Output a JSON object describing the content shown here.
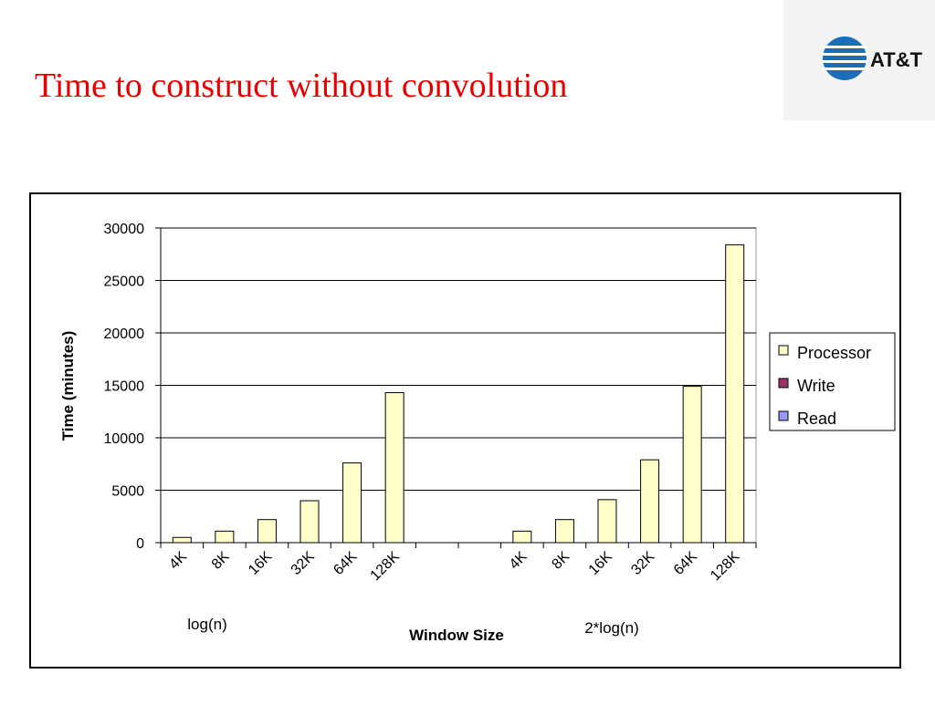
{
  "logo": "AT&T",
  "chart_data": {
    "type": "stacked_bar",
    "title": "Time to construct without convolution",
    "y_label": "Time (minutes)",
    "x_label": "Window Size",
    "annotations": [
      "log(n)",
      "2*log(n)"
    ],
    "categories": [
      "4K",
      "8K",
      "16K",
      "32K",
      "64K",
      "128K",
      null,
      null,
      "4K",
      "8K",
      "16K",
      "32K",
      "64K",
      "128K"
    ],
    "series": [
      {
        "name": "Processor",
        "color": "#ffffcc",
        "values": [
          500,
          1100,
          2200,
          4000,
          7600,
          14300,
          null,
          null,
          1100,
          2200,
          4100,
          7900,
          14900,
          28400
        ]
      },
      {
        "name": "Write",
        "color": "#993366",
        "values": [
          0,
          0,
          0,
          0,
          0,
          0,
          null,
          null,
          0,
          0,
          0,
          0,
          0,
          0
        ]
      },
      {
        "name": "Read",
        "color": "#9999ff",
        "values": [
          0,
          0,
          0,
          0,
          0,
          0,
          null,
          null,
          0,
          0,
          0,
          0,
          0,
          0
        ]
      }
    ],
    "ylim": [
      0,
      30000
    ],
    "yticks": [
      0,
      5000,
      10000,
      15000,
      20000,
      25000,
      30000
    ],
    "grid": true,
    "legend": "right"
  }
}
